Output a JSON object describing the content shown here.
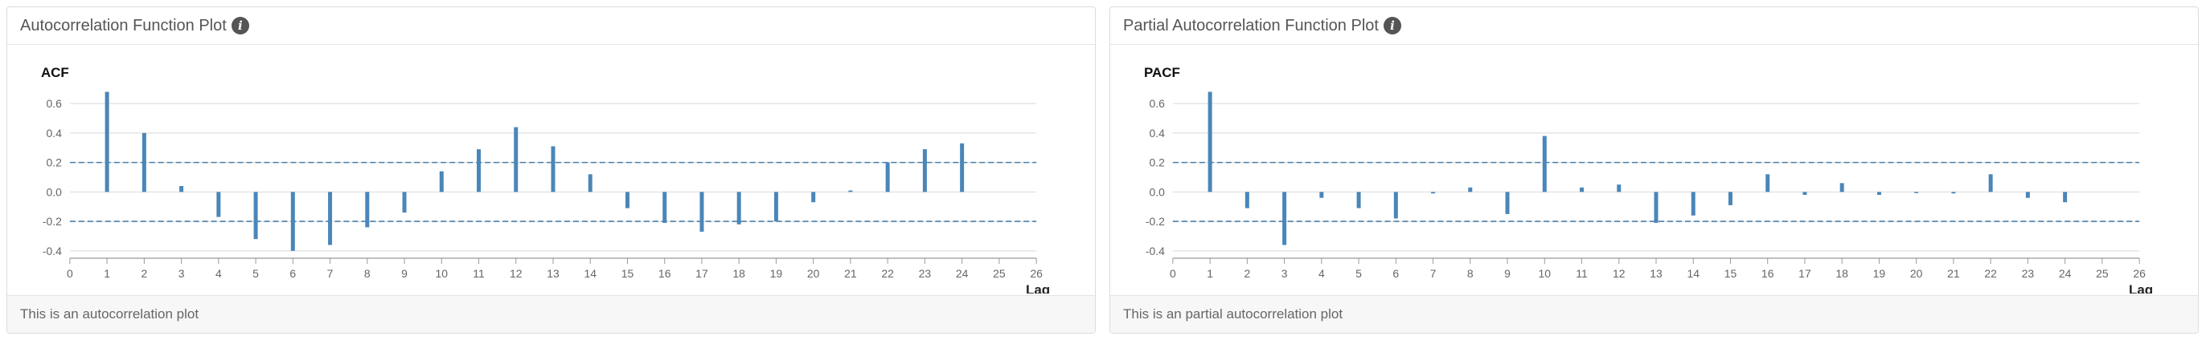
{
  "panels": [
    {
      "header_title": "Autocorrelation Function Plot",
      "footer_text": "This is an autocorrelation plot"
    },
    {
      "header_title": "Partial Autocorrelation Function Plot",
      "footer_text": "This is an partial autocorrelation plot"
    }
  ],
  "icons": {
    "info": "info-icon"
  },
  "colors": {
    "bar": "#4a86b8",
    "confidence": "#4a7fa8",
    "grid": "#d9d9d9",
    "axis": "#999999"
  },
  "chart_data": [
    {
      "type": "bar",
      "title": "ACF",
      "xlabel": "Lag",
      "ylabel": "",
      "xlim": [
        0,
        26
      ],
      "ylim": [
        -0.45,
        0.65
      ],
      "x_ticks": [
        0,
        1,
        2,
        3,
        4,
        5,
        6,
        7,
        8,
        9,
        10,
        11,
        12,
        13,
        14,
        15,
        16,
        17,
        18,
        19,
        20,
        21,
        22,
        23,
        24,
        25,
        26
      ],
      "y_ticks": [
        -0.4,
        -0.2,
        0.0,
        0.2,
        0.4,
        0.6
      ],
      "y_tick_labels": [
        "-0.4",
        "-0.2",
        "0.0",
        "0.2",
        "0.4",
        "0.6"
      ],
      "confidence_band": [
        -0.2,
        0.2
      ],
      "lags": [
        1,
        2,
        3,
        4,
        5,
        6,
        7,
        8,
        9,
        10,
        11,
        12,
        13,
        14,
        15,
        16,
        17,
        18,
        19,
        20,
        21,
        22,
        23,
        24
      ],
      "values": [
        0.68,
        0.4,
        0.04,
        -0.17,
        -0.32,
        -0.4,
        -0.36,
        -0.24,
        -0.14,
        0.14,
        0.29,
        0.44,
        0.31,
        0.12,
        -0.11,
        -0.21,
        -0.27,
        -0.22,
        -0.2,
        -0.07,
        0.01,
        0.2,
        0.29,
        0.33
      ],
      "grid": true
    },
    {
      "type": "bar",
      "title": "PACF",
      "xlabel": "Lag",
      "ylabel": "",
      "xlim": [
        0,
        26
      ],
      "ylim": [
        -0.45,
        0.65
      ],
      "x_ticks": [
        0,
        1,
        2,
        3,
        4,
        5,
        6,
        7,
        8,
        9,
        10,
        11,
        12,
        13,
        14,
        15,
        16,
        17,
        18,
        19,
        20,
        21,
        22,
        23,
        24,
        25,
        26
      ],
      "y_ticks": [
        -0.4,
        -0.2,
        0.0,
        0.2,
        0.4,
        0.6
      ],
      "y_tick_labels": [
        "-0.4",
        "-0.2",
        "0.0",
        "0.2",
        "0.4",
        "0.6"
      ],
      "confidence_band": [
        -0.2,
        0.2
      ],
      "lags": [
        1,
        2,
        3,
        4,
        5,
        6,
        7,
        8,
        9,
        10,
        11,
        12,
        13,
        14,
        15,
        16,
        17,
        18,
        19,
        20,
        21,
        22,
        23,
        24
      ],
      "values": [
        0.68,
        -0.11,
        -0.36,
        -0.04,
        -0.11,
        -0.18,
        -0.01,
        0.03,
        -0.15,
        0.38,
        0.03,
        0.05,
        -0.21,
        -0.16,
        -0.09,
        0.12,
        -0.02,
        0.06,
        -0.02,
        0.0,
        -0.01,
        0.12,
        -0.04,
        -0.07
      ],
      "grid": true
    }
  ]
}
